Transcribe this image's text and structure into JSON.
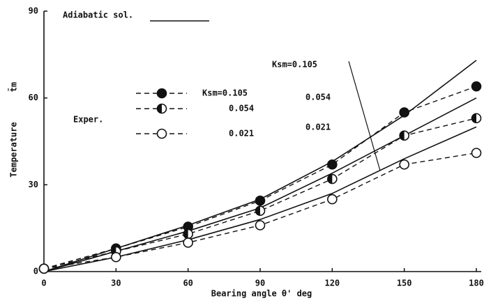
{
  "chart_data": {
    "type": "line",
    "x_label": "Bearing angle θ' deg",
    "y_label": "Temperature",
    "y_symbol": "t̄m",
    "adiabatic_label": "Adiabatic sol.",
    "exper_label": "Exper.",
    "x": [
      0,
      30,
      60,
      90,
      120,
      150,
      180
    ],
    "xlim": [
      0,
      180
    ],
    "xticks": [
      0,
      30,
      60,
      90,
      120,
      150,
      180
    ],
    "ylim": [
      0,
      90
    ],
    "yticks": [
      0,
      30,
      60,
      90
    ],
    "series": [
      {
        "name": "Ksm=0.105",
        "kind": "adiabatic",
        "color": "#111111",
        "values": [
          0,
          8,
          16,
          25,
          38,
          54,
          73
        ]
      },
      {
        "name": "0.054",
        "kind": "adiabatic",
        "color": "#111111",
        "values": [
          0,
          7,
          14,
          22,
          34,
          47,
          60
        ]
      },
      {
        "name": "0.021",
        "kind": "adiabatic",
        "color": "#111111",
        "values": [
          0,
          5,
          11,
          18,
          27,
          39,
          50
        ]
      },
      {
        "name": "Ksm=0.105",
        "kind": "exper",
        "marker": "filled",
        "color": "#111111",
        "values": [
          1,
          8,
          15.5,
          24.5,
          37,
          55,
          64
        ]
      },
      {
        "name": "0.054",
        "kind": "exper",
        "marker": "half",
        "color": "#111111",
        "values": [
          1,
          7,
          13,
          21,
          32,
          47,
          53
        ]
      },
      {
        "name": "0.021",
        "kind": "exper",
        "marker": "open",
        "color": "#111111",
        "values": [
          1,
          5,
          10,
          16,
          25,
          37,
          41
        ]
      }
    ]
  }
}
